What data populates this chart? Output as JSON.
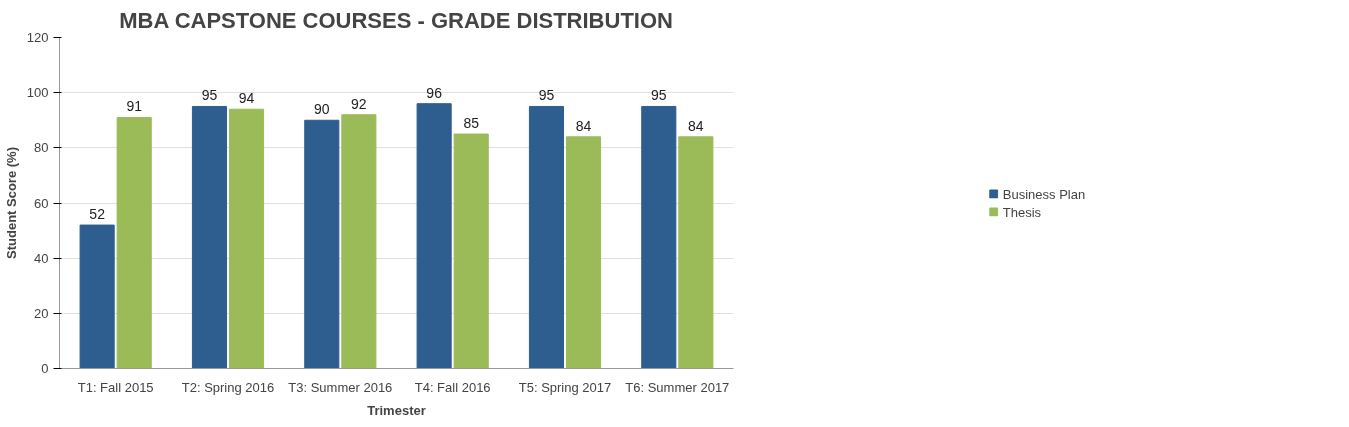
{
  "chart_data": {
    "type": "bar",
    "title": "MBA CAPSTONE COURSES - GRADE DISTRIBUTION",
    "xlabel": "Trimester",
    "ylabel": "Student Score (%)",
    "categories": [
      "T1: Fall 2015",
      "T2: Spring 2016",
      "T3: Summer 2016",
      "T4: Fall 2016",
      "T5: Spring 2017",
      "T6: Summer 2017"
    ],
    "series": [
      {
        "name": "Business Plan",
        "color": "#2e5d8f",
        "values": [
          52,
          95,
          90,
          96,
          95,
          95
        ]
      },
      {
        "name": "Thesis",
        "color": "#9bbb59",
        "values": [
          91,
          94,
          92,
          85,
          84,
          84
        ]
      }
    ],
    "ylim": [
      0,
      120
    ],
    "yticks": [
      0,
      20,
      40,
      60,
      80,
      100,
      120
    ],
    "grid": "y",
    "legend": "right",
    "data_labels": true
  }
}
